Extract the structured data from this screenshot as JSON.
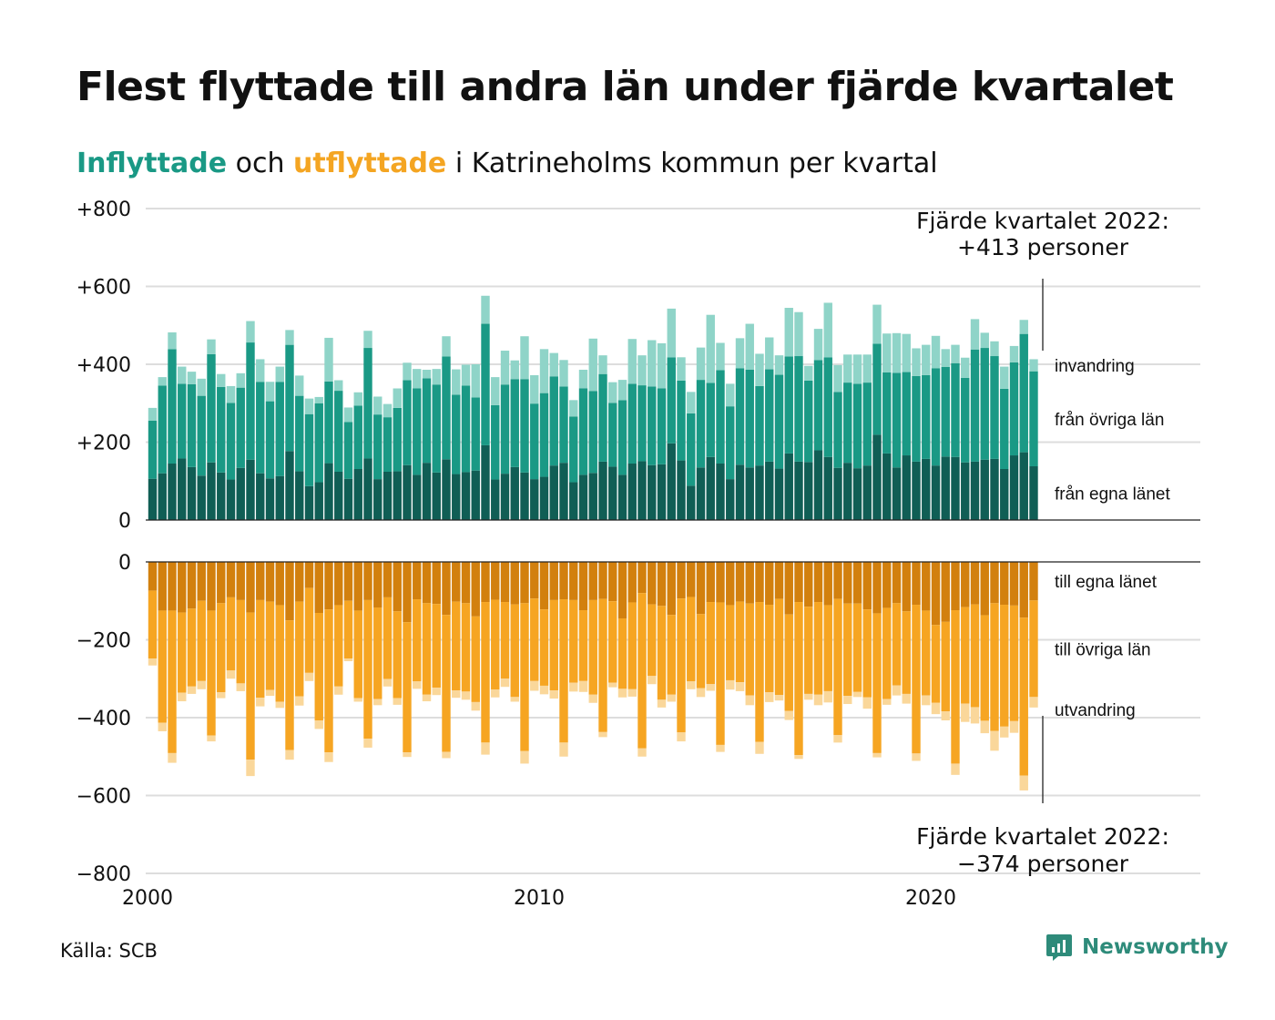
{
  "title": "Flest flyttade till andra län under fjärde kvartalet",
  "subtitle": {
    "in_word": "Inflyttade",
    "and_word": "och",
    "out_word": "utflyttade",
    "rest": "i Katrineholms kommun per kvartal"
  },
  "source": "Källa: SCB",
  "brand": "Newsworthy",
  "colors": {
    "in_own": "#105e55",
    "in_other": "#1a9985",
    "in_imm": "#8fd4c8",
    "out_own": "#d2800e",
    "out_other": "#f6a522",
    "out_emig": "#fad79a",
    "grid": "#dddddd",
    "brand": "#2e8b7a"
  },
  "chart_data": [
    {
      "type": "bar",
      "stacked": true,
      "title": "Inflyttade",
      "x_start": 2000,
      "x_step": 0.25,
      "x_ticks": [
        "2000",
        "2010",
        "2020"
      ],
      "y_ticks": [
        "0",
        "+200",
        "+400",
        "+600",
        "+800"
      ],
      "ylim": [
        0,
        800
      ],
      "grid": true,
      "series": [
        {
          "name": "från egna länet",
          "values": [
            106,
            120,
            145,
            158,
            136,
            114,
            148,
            122,
            104,
            134,
            155,
            120,
            107,
            113,
            177,
            125,
            87,
            97,
            146,
            124,
            106,
            131,
            158,
            105,
            124,
            125,
            141,
            116,
            147,
            122,
            156,
            118,
            123,
            127,
            192,
            104,
            119,
            136,
            122,
            105,
            111,
            140,
            147,
            97,
            116,
            121,
            150,
            137,
            116,
            145,
            151,
            141,
            143,
            197,
            153,
            88,
            135,
            162,
            145,
            105,
            142,
            135,
            140,
            150,
            132,
            171,
            150,
            149,
            179,
            162,
            134,
            147,
            133,
            140,
            219,
            171,
            135,
            166,
            150,
            157,
            140,
            163,
            162,
            148,
            150,
            155,
            157,
            131,
            166,
            174,
            138
          ]
        },
        {
          "name": "från övriga län",
          "values": [
            149,
            225,
            294,
            192,
            213,
            205,
            278,
            220,
            197,
            206,
            301,
            235,
            198,
            242,
            273,
            194,
            185,
            203,
            210,
            208,
            146,
            163,
            284,
            166,
            140,
            163,
            218,
            222,
            217,
            226,
            264,
            204,
            222,
            188,
            312,
            191,
            229,
            226,
            240,
            194,
            215,
            229,
            196,
            169,
            222,
            210,
            225,
            164,
            192,
            205,
            195,
            202,
            195,
            221,
            205,
            186,
            225,
            190,
            240,
            187,
            248,
            251,
            204,
            237,
            241,
            249,
            271,
            209,
            232,
            256,
            195,
            206,
            217,
            213,
            234,
            208,
            243,
            214,
            220,
            215,
            250,
            230,
            241,
            217,
            288,
            287,
            264,
            206,
            239,
            304,
            244
          ]
        },
        {
          "name": "invandring",
          "values": [
            33,
            22,
            43,
            44,
            32,
            44,
            38,
            33,
            43,
            37,
            55,
            58,
            50,
            39,
            38,
            52,
            40,
            16,
            112,
            27,
            37,
            34,
            44,
            46,
            34,
            50,
            45,
            50,
            22,
            40,
            52,
            65,
            54,
            85,
            72,
            72,
            87,
            48,
            110,
            73,
            113,
            60,
            68,
            42,
            48,
            135,
            48,
            53,
            52,
            115,
            77,
            119,
            116,
            125,
            60,
            55,
            83,
            175,
            70,
            58,
            77,
            118,
            83,
            82,
            50,
            125,
            113,
            38,
            80,
            140,
            69,
            72,
            75,
            72,
            100,
            100,
            102,
            98,
            71,
            78,
            83,
            46,
            47,
            52,
            78,
            39,
            38,
            57,
            42,
            36,
            31
          ]
        }
      ]
    },
    {
      "type": "bar",
      "stacked": true,
      "title": "Utflyttade",
      "x_start": 2000,
      "x_step": 0.25,
      "x_ticks": [
        "2000",
        "2010",
        "2020"
      ],
      "y_ticks": [
        "0",
        "−200",
        "−400",
        "−600",
        "−800"
      ],
      "ylim": [
        -800,
        0
      ],
      "grid": true,
      "series": [
        {
          "name": "till egna länet",
          "values": [
            -74,
            -125,
            -125,
            -130,
            -120,
            -100,
            -125,
            -106,
            -91,
            -98,
            -130,
            -98,
            -102,
            -111,
            -150,
            -102,
            -67,
            -131,
            -122,
            -111,
            -100,
            -125,
            -98,
            -117,
            -91,
            -127,
            -155,
            -96,
            -106,
            -108,
            -136,
            -102,
            -106,
            -140,
            -103,
            -97,
            -103,
            -109,
            -106,
            -94,
            -122,
            -98,
            -96,
            -98,
            -124,
            -98,
            -95,
            -101,
            -145,
            -104,
            -80,
            -109,
            -113,
            -136,
            -94,
            -90,
            -134,
            -103,
            -104,
            -111,
            -102,
            -107,
            -103,
            -110,
            -95,
            -135,
            -103,
            -115,
            -103,
            -111,
            -95,
            -107,
            -107,
            -122,
            -132,
            -118,
            -106,
            -127,
            -110,
            -125,
            -162,
            -154,
            -124,
            -116,
            -109,
            -137,
            -106,
            -110,
            -112,
            -143,
            -99
          ]
        },
        {
          "name": "till övriga län",
          "values": [
            -174,
            -288,
            -366,
            -206,
            -200,
            -206,
            -321,
            -229,
            -188,
            -214,
            -378,
            -251,
            -227,
            -248,
            -333,
            -243,
            -218,
            -276,
            -367,
            -209,
            -148,
            -225,
            -356,
            -235,
            -210,
            -223,
            -334,
            -211,
            -235,
            -215,
            -352,
            -228,
            -227,
            -220,
            -361,
            -231,
            -197,
            -238,
            -380,
            -212,
            -196,
            -232,
            -368,
            -212,
            -182,
            -243,
            -342,
            -209,
            -181,
            -223,
            -399,
            -184,
            -241,
            -205,
            -344,
            -217,
            -190,
            -211,
            -366,
            -193,
            -207,
            -236,
            -359,
            -225,
            -247,
            -248,
            -393,
            -224,
            -238,
            -221,
            -350,
            -237,
            -227,
            -226,
            -359,
            -234,
            -211,
            -212,
            -382,
            -218,
            -200,
            -230,
            -394,
            -248,
            -264,
            -271,
            -328,
            -313,
            -297,
            -406,
            -248
          ]
        },
        {
          "name": "utvandring",
          "values": [
            -18,
            -22,
            -25,
            -22,
            -19,
            -21,
            -15,
            -15,
            -21,
            -20,
            -42,
            -22,
            -15,
            -16,
            -25,
            -24,
            -21,
            -22,
            -25,
            -21,
            -7,
            -9,
            -23,
            -16,
            -19,
            -17,
            -12,
            -19,
            -17,
            -19,
            -16,
            -19,
            -21,
            -22,
            -31,
            -20,
            -21,
            -12,
            -32,
            -25,
            -22,
            -21,
            -36,
            -23,
            -28,
            -21,
            -13,
            -12,
            -22,
            -19,
            -21,
            -21,
            -20,
            -18,
            -23,
            -20,
            -23,
            -17,
            -18,
            -24,
            -23,
            -25,
            -31,
            -25,
            -14,
            -23,
            -10,
            -15,
            -27,
            -29,
            -19,
            -21,
            -13,
            -29,
            -11,
            -15,
            -26,
            -25,
            -19,
            -25,
            -29,
            -23,
            -29,
            -47,
            -42,
            -32,
            -51,
            -28,
            -30,
            -38,
            -27
          ]
        }
      ]
    }
  ],
  "annotations": {
    "top_line1": "Fjärde kvartalet 2022:",
    "top_line2": "+413 personer",
    "bottom_line1": "Fjärde kvartalet 2022:",
    "bottom_line2": "−374 personer"
  }
}
